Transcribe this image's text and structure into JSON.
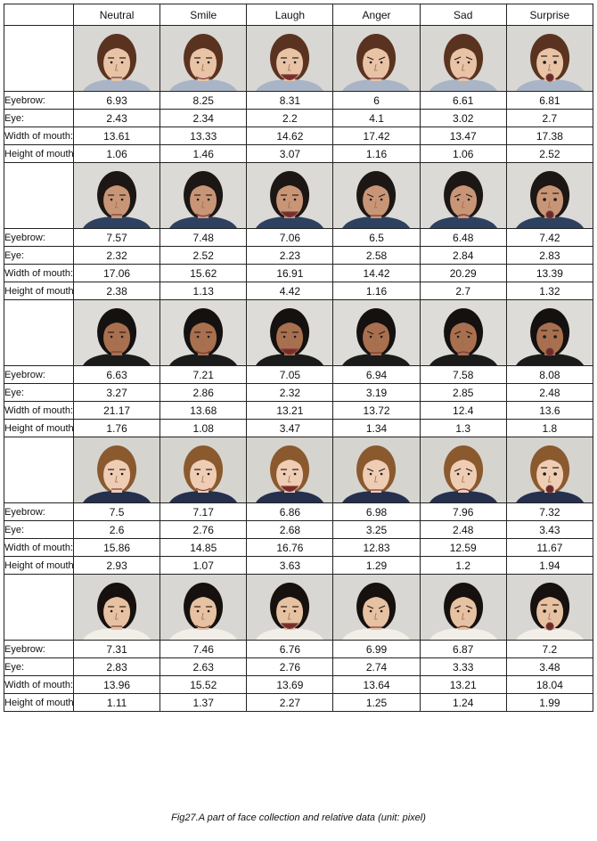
{
  "header": {
    "corner": "",
    "columns": [
      "Neutral",
      "Smile",
      "Laugh",
      "Anger",
      "Sad",
      "Surprise"
    ]
  },
  "row_labels": [
    "Eyebrow:",
    "Eye:",
    "Width of mouth:",
    "Height of mouth:"
  ],
  "subjects": [
    {
      "hair": "#5a3320",
      "skin": "#e8c3a6",
      "shirt": "#a9b5c6",
      "bg": "#d9d7d3",
      "values": [
        [
          "6.93",
          "8.25",
          "8.31",
          "6",
          "6.61",
          "6.81"
        ],
        [
          "2.43",
          "2.34",
          "2.2",
          "4.1",
          "3.02",
          "2.7"
        ],
        [
          "13.61",
          "13.33",
          "14.62",
          "17.42",
          "13.47",
          "17.38"
        ],
        [
          "1.06",
          "1.46",
          "3.07",
          "1.16",
          "1.06",
          "2.52"
        ]
      ]
    },
    {
      "hair": "#1c1714",
      "skin": "#c89577",
      "shirt": "#2f4160",
      "bg": "#dcdad6",
      "values": [
        [
          "7.57",
          "7.48",
          "7.06",
          "6.5",
          "6.48",
          "7.42"
        ],
        [
          "2.32",
          "2.52",
          "2.23",
          "2.58",
          "2.84",
          "2.83"
        ],
        [
          "17.06",
          "15.62",
          "16.91",
          "14.42",
          "20.29",
          "13.39"
        ],
        [
          "2.38",
          "1.13",
          "4.42",
          "1.16",
          "2.7",
          "1.32"
        ]
      ]
    },
    {
      "hair": "#141110",
      "skin": "#a8704f",
      "shirt": "#1b1b1b",
      "bg": "#dedcd8",
      "values": [
        [
          "6.63",
          "7.21",
          "7.05",
          "6.94",
          "7.58",
          "8.08"
        ],
        [
          "3.27",
          "2.86",
          "2.32",
          "3.19",
          "2.85",
          "2.48"
        ],
        [
          "21.17",
          "13.68",
          "13.21",
          "13.72",
          "12.4",
          "13.6"
        ],
        [
          "1.76",
          "1.08",
          "3.47",
          "1.34",
          "1.3",
          "1.8"
        ]
      ]
    },
    {
      "hair": "#8a5a2e",
      "skin": "#efcdb5",
      "shirt": "#25304e",
      "bg": "#d6d4cf",
      "values": [
        [
          "7.5",
          "7.17",
          "6.86",
          "6.98",
          "7.96",
          "7.32"
        ],
        [
          "2.6",
          "2.76",
          "2.68",
          "3.25",
          "2.48",
          "3.43"
        ],
        [
          "15.86",
          "14.85",
          "16.76",
          "12.83",
          "12.59",
          "11.67"
        ],
        [
          "2.93",
          "1.07",
          "3.63",
          "1.29",
          "1.2",
          "1.94"
        ]
      ]
    },
    {
      "hair": "#16110f",
      "skin": "#e6c1a2",
      "shirt": "#f2efe9",
      "bg": "#d9d7d3",
      "values": [
        [
          "7.31",
          "7.46",
          "6.76",
          "6.99",
          "6.87",
          "7.2"
        ],
        [
          "2.83",
          "2.63",
          "2.76",
          "2.74",
          "3.33",
          "3.48"
        ],
        [
          "13.96",
          "15.52",
          "13.69",
          "13.64",
          "13.21",
          "18.04"
        ],
        [
          "1.11",
          "1.37",
          "2.27",
          "1.25",
          "1.24",
          "1.99"
        ]
      ]
    }
  ],
  "caption": "Fig27.A part of face collection and relative data (unit: pixel)"
}
